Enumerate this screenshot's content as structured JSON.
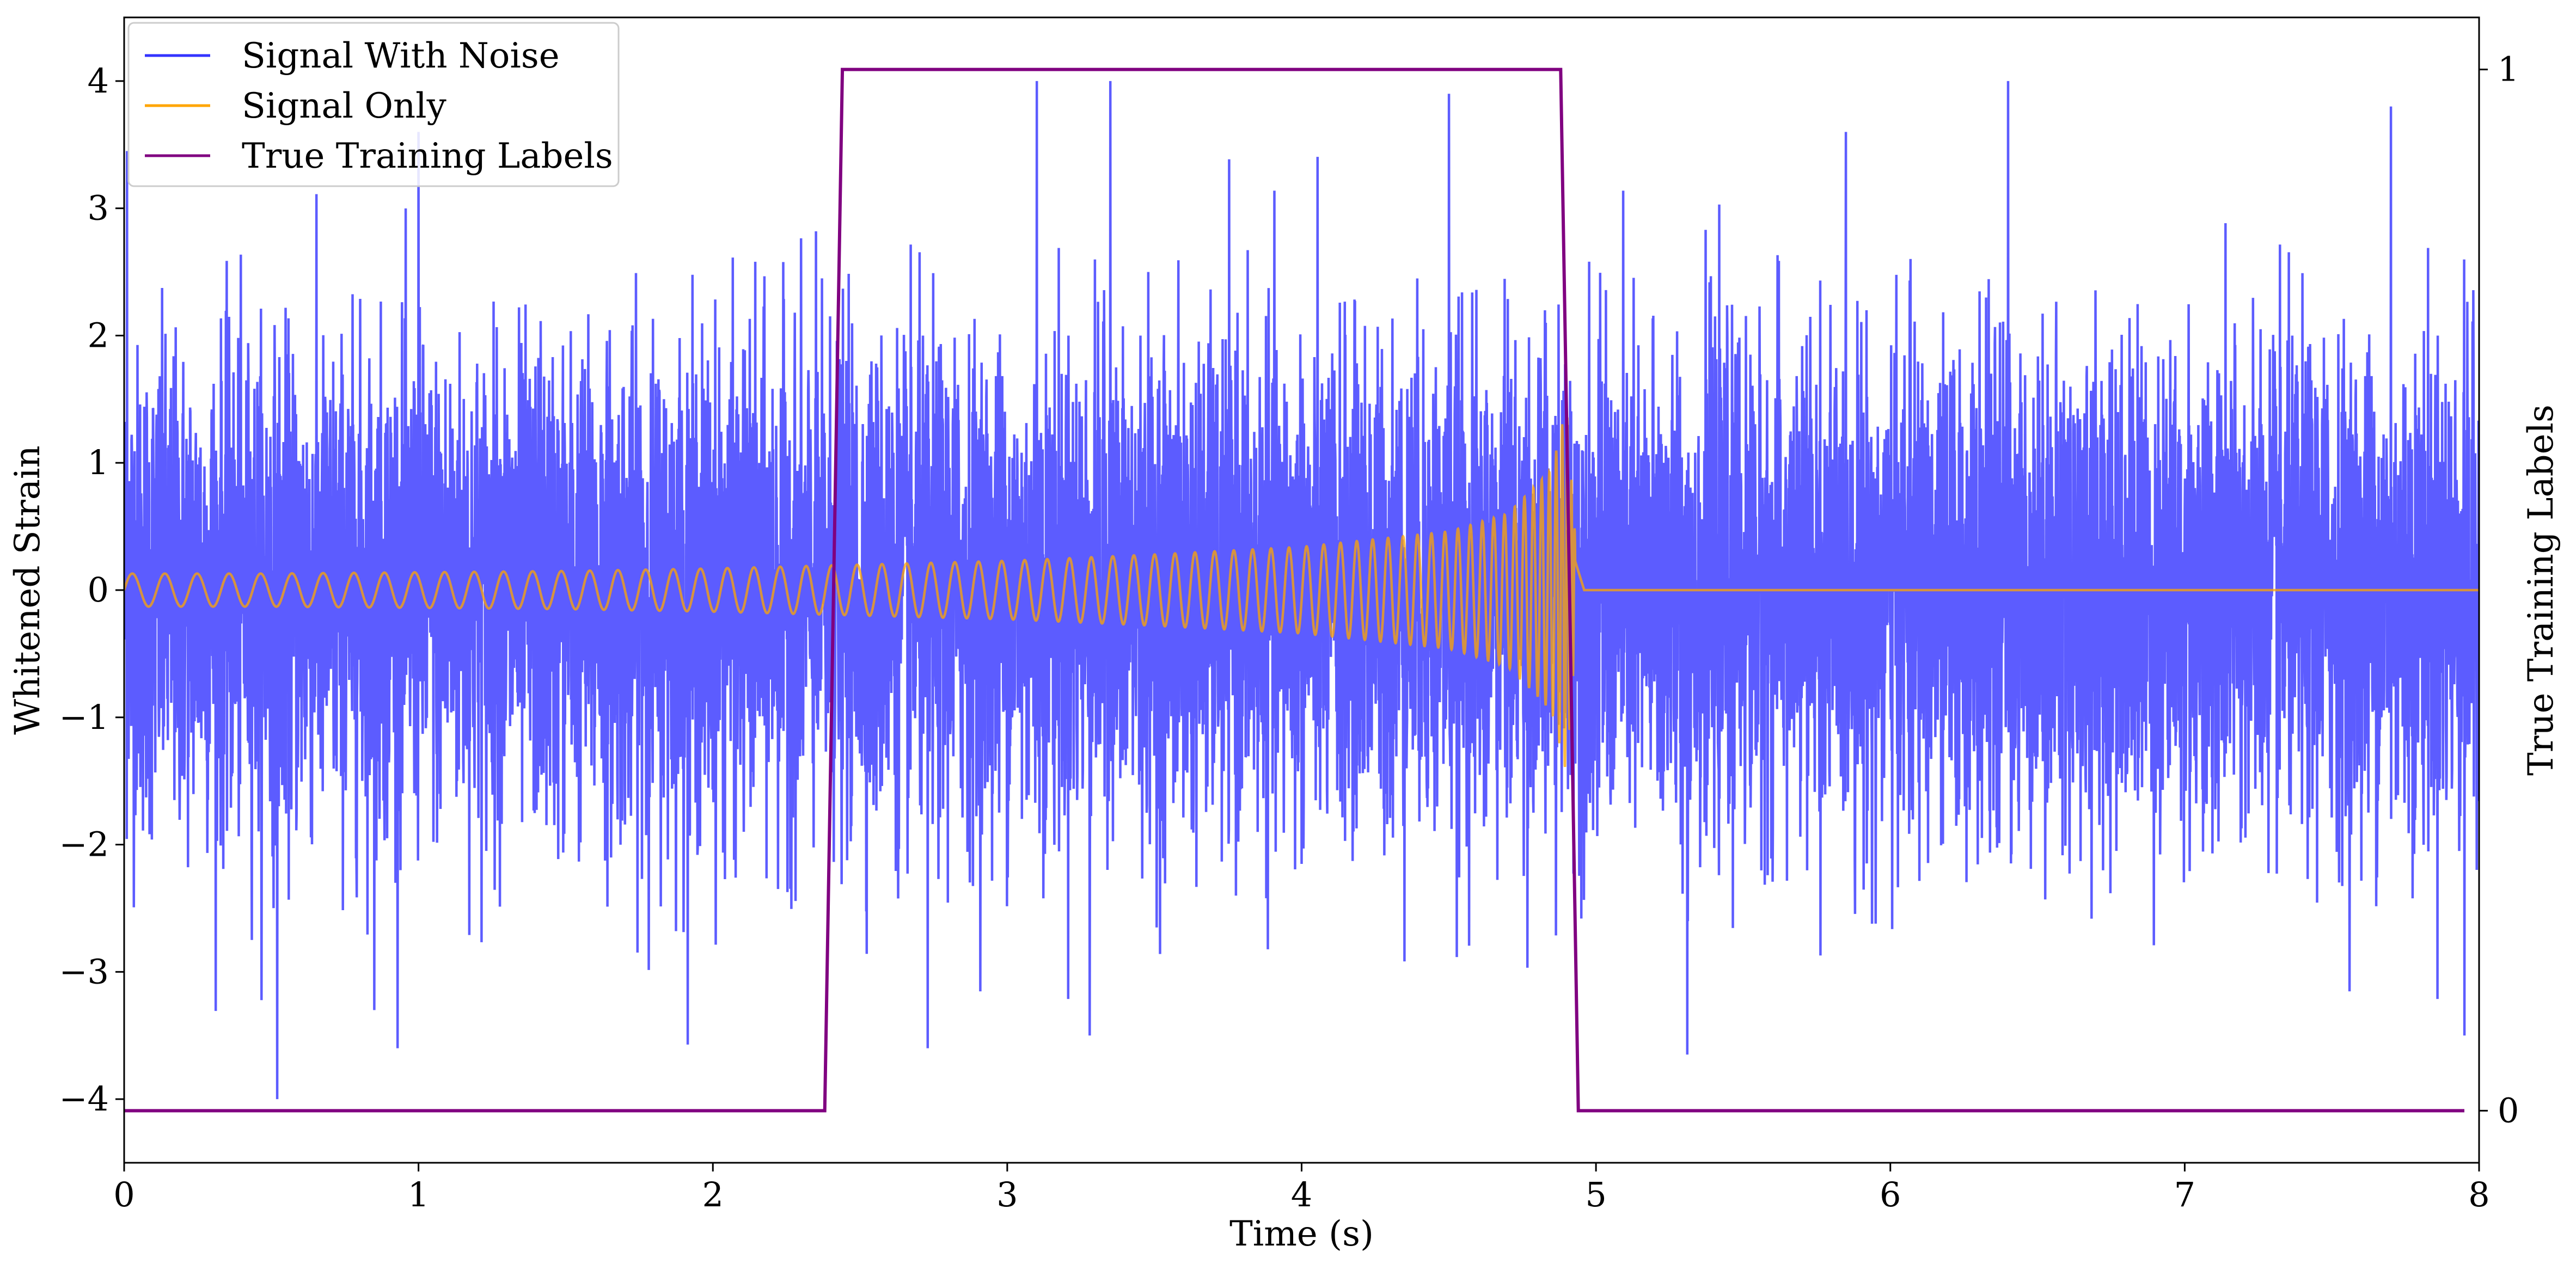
{
  "chart_data": {
    "type": "line",
    "title": "",
    "xlabel": "Time (s)",
    "ylabel": "Whitened Strain",
    "ylabel_right": "True Training Labels",
    "xlim": [
      0,
      8
    ],
    "ylim": [
      -4.5,
      4.5
    ],
    "ylim_right": [
      -0.05,
      1.05
    ],
    "xticks": [
      0,
      1,
      2,
      3,
      4,
      5,
      6,
      7,
      8
    ],
    "xtick_labels": [
      "0",
      "1",
      "2",
      "3",
      "4",
      "5",
      "6",
      "7",
      "8"
    ],
    "yticks": [
      -4,
      -3,
      -2,
      -1,
      0,
      1,
      2,
      3,
      4
    ],
    "ytick_labels": [
      "−4",
      "−3",
      "−2",
      "−1",
      "0",
      "1",
      "2",
      "3",
      "4"
    ],
    "yticks_right": [
      0,
      1
    ],
    "ytick_labels_right": [
      "0",
      "1"
    ],
    "grid": false,
    "legend_position": "top-left",
    "series": [
      {
        "name": "Signal With Noise",
        "axis": "left",
        "color": "#3333ff",
        "description_values": {
          "typical_amplitude": 1.0,
          "approx_max": 4.0,
          "approx_min": -4.0,
          "notable_peaks": [
            [
              0.01,
              3.45
            ],
            [
              1.0,
              3.6
            ],
            [
              3.1,
              4.0
            ],
            [
              3.35,
              4.0
            ],
            [
              4.5,
              3.9
            ],
            [
              6.4,
              4.0
            ],
            [
              7.7,
              3.8
            ]
          ],
          "notable_troughs": [
            [
              0.52,
              -4.0
            ],
            [
              0.85,
              -3.3
            ],
            [
              2.73,
              -3.6
            ],
            [
              3.28,
              -3.5
            ],
            [
              5.31,
              -3.65
            ],
            [
              7.95,
              -3.5
            ]
          ]
        }
      },
      {
        "name": "Signal Only",
        "axis": "left",
        "color": "#ffa500",
        "x": [
          0,
          0.5,
          1,
          1.5,
          2,
          2.5,
          3,
          3.5,
          4,
          4.5,
          4.7,
          4.85,
          4.9,
          4.93,
          4.96,
          8
        ],
        "envelope": [
          0.13,
          0.13,
          0.14,
          0.15,
          0.17,
          0.2,
          0.23,
          0.28,
          0.34,
          0.46,
          0.6,
          0.95,
          1.45,
          0.4,
          0.0,
          0.0
        ]
      },
      {
        "name": "True Training Labels",
        "axis": "right",
        "color": "#800080",
        "x": [
          0,
          2.38,
          2.44,
          4.88,
          4.94,
          7.95
        ],
        "y": [
          0,
          0,
          1,
          1,
          0,
          0
        ]
      }
    ]
  }
}
